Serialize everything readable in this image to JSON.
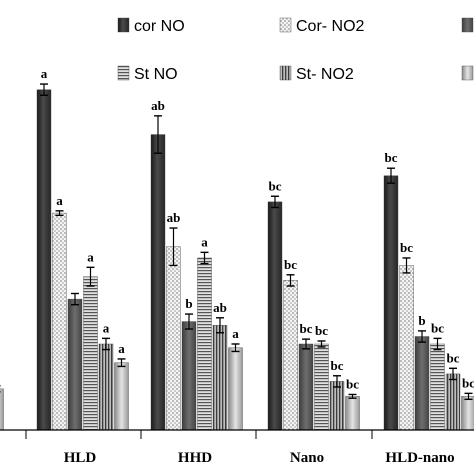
{
  "chart_data": {
    "type": "bar",
    "title": "",
    "xlabel": "",
    "ylabel": "",
    "ylim": [
      0,
      100
    ],
    "grid": false,
    "legend_position": "top",
    "categories": [
      "",
      "HLD",
      "HHD",
      "Nano",
      "HLD-nano"
    ],
    "series": [
      {
        "name": "cor NO",
        "color": "#333333",
        "pattern": "solid-dark",
        "values": [
          null,
          91,
          79,
          61,
          68
        ],
        "errors": [
          null,
          1.5,
          5,
          1.5,
          2
        ],
        "labels": [
          "",
          "a",
          "ab",
          "bc",
          "bc"
        ]
      },
      {
        "name": "Cor- NO2",
        "color": "#eeeeee",
        "pattern": "dots",
        "values": [
          null,
          58,
          49,
          40,
          44
        ],
        "errors": [
          null,
          0.6,
          5,
          1.5,
          2
        ],
        "labels": [
          "",
          "a",
          "ab",
          "bc",
          "bc"
        ]
      },
      {
        "name": "",
        "color": "#555555",
        "pattern": "solid-mid",
        "values": [
          null,
          35,
          29,
          23,
          25
        ],
        "errors": [
          null,
          1.5,
          2,
          1.3,
          1.5
        ],
        "labels": [
          "",
          "",
          "b",
          "bc",
          "b"
        ]
      },
      {
        "name": "St NO",
        "color": "#bbbbbb",
        "pattern": "horizontal-lines",
        "values": [
          null,
          41,
          46,
          23,
          23
        ],
        "errors": [
          null,
          2.5,
          1.5,
          0.8,
          1.5
        ],
        "labels": [
          "",
          "a",
          "a",
          "bc",
          "bc"
        ]
      },
      {
        "name": "St- NO2",
        "color": "#888888",
        "pattern": "vertical-lines",
        "values": [
          null,
          23,
          28,
          13,
          15
        ],
        "errors": [
          null,
          1.5,
          2,
          1.5,
          1.5
        ],
        "labels": [
          "",
          "a",
          "ab",
          "bc",
          "bc"
        ]
      },
      {
        "name": "",
        "color": "#aaaaaa",
        "pattern": "gradient",
        "values": [
          11,
          18,
          22,
          9,
          9
        ],
        "errors": [
          0.8,
          1,
          1,
          0.5,
          0.8
        ],
        "labels": [
          "",
          "a",
          "a",
          "bc",
          "bc"
        ]
      }
    ]
  }
}
